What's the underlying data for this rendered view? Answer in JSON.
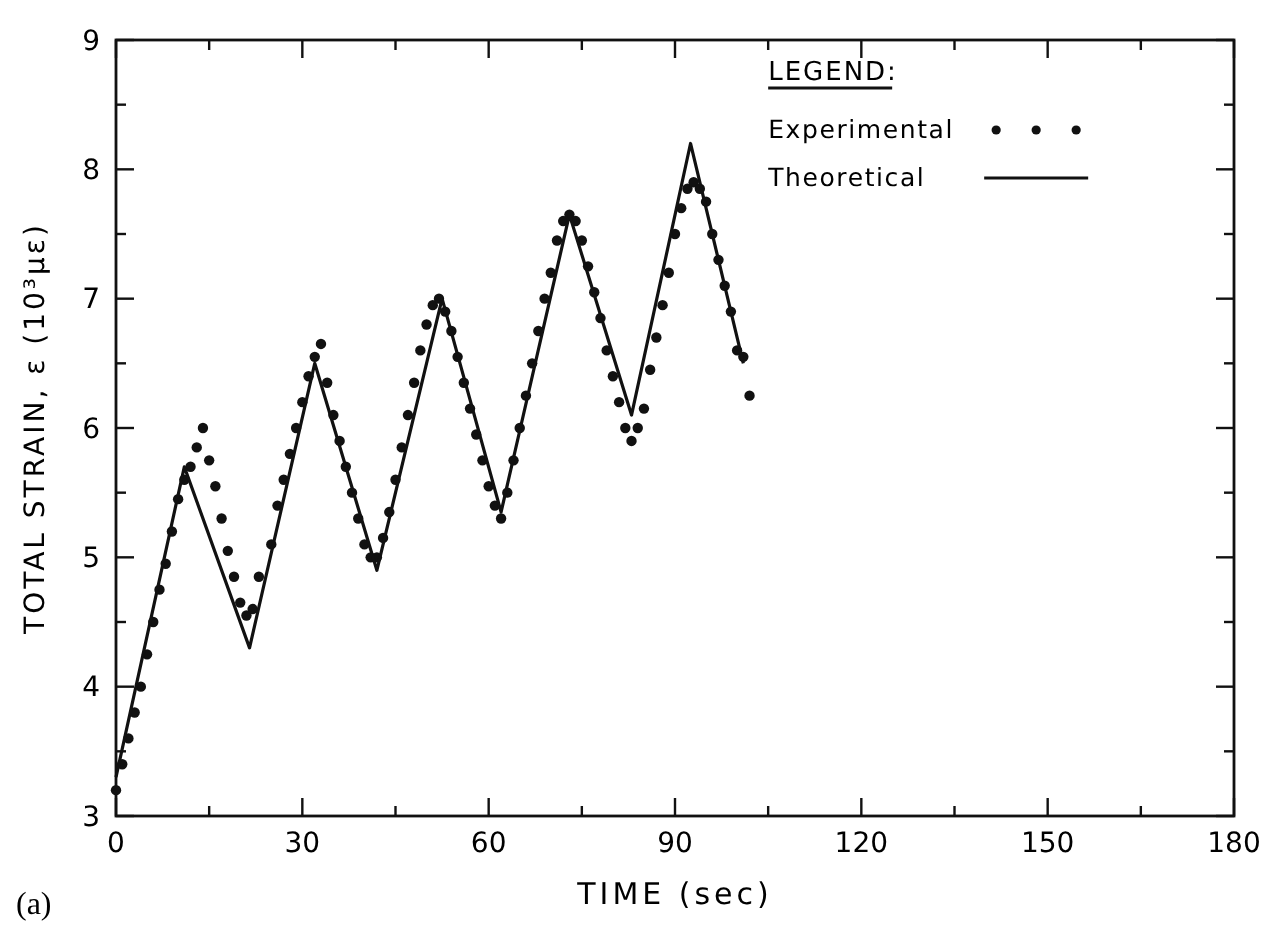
{
  "chart_data": {
    "type": "scatter",
    "xlabel": "TIME (sec)",
    "ylabel": "TOTAL STRAIN, ε (10³με)",
    "legend_title": "LEGEND:",
    "legend": "top right",
    "grid": false,
    "xlim": [
      0,
      180
    ],
    "ylim": [
      3,
      9
    ],
    "xticks": [
      0,
      {
        "value": 15,
        "label": null
      },
      30,
      {
        "value": 45,
        "label": null
      },
      60,
      {
        "value": 75,
        "label": null
      },
      90,
      {
        "value": 105,
        "label": null
      },
      120,
      {
        "value": 135,
        "label": null
      },
      150,
      {
        "value": 165,
        "label": null
      },
      180
    ],
    "yticks": [
      3,
      {
        "value": 3.5,
        "label": null
      },
      4,
      {
        "value": 4.5,
        "label": null
      },
      5,
      {
        "value": 5.5,
        "label": null
      },
      6,
      {
        "value": 6.5,
        "label": null
      },
      7,
      {
        "value": 7.5,
        "label": null
      },
      8,
      {
        "value": 8.5,
        "label": null
      },
      9
    ],
    "annotations": [
      "(a)"
    ],
    "series": [
      {
        "name": "Experimental",
        "marker": "circle",
        "color": "#111111",
        "x": [
          0,
          1,
          2,
          3,
          4,
          5,
          6,
          7,
          8,
          9,
          10,
          11,
          12,
          13,
          14,
          15,
          16,
          17,
          18,
          19,
          20,
          21,
          22,
          23,
          25,
          26,
          27,
          28,
          29,
          30,
          31,
          32,
          33,
          34,
          35,
          36,
          37,
          38,
          39,
          40,
          41,
          42,
          43,
          44,
          45,
          46,
          47,
          48,
          49,
          50,
          51,
          52,
          53,
          54,
          55,
          56,
          57,
          58,
          59,
          60,
          61,
          62,
          63,
          64,
          65,
          66,
          67,
          68,
          69,
          70,
          71,
          72,
          73,
          74,
          75,
          76,
          77,
          78,
          79,
          80,
          81,
          82,
          83,
          84,
          85,
          86,
          87,
          88,
          89,
          90,
          91,
          92,
          93,
          94,
          95,
          96,
          97,
          98,
          99,
          100,
          101,
          102
        ],
        "values": [
          3.2,
          3.4,
          3.6,
          3.8,
          4.0,
          4.25,
          4.5,
          4.75,
          4.95,
          5.2,
          5.45,
          5.6,
          5.7,
          5.85,
          6.0,
          5.75,
          5.55,
          5.3,
          5.05,
          4.85,
          4.65,
          4.55,
          4.6,
          4.85,
          5.1,
          5.4,
          5.6,
          5.8,
          6.0,
          6.2,
          6.4,
          6.55,
          6.65,
          6.35,
          6.1,
          5.9,
          5.7,
          5.5,
          5.3,
          5.1,
          5.0,
          5.0,
          5.15,
          5.35,
          5.6,
          5.85,
          6.1,
          6.35,
          6.6,
          6.8,
          6.95,
          7.0,
          6.9,
          6.75,
          6.55,
          6.35,
          6.15,
          5.95,
          5.75,
          5.55,
          5.4,
          5.3,
          5.5,
          5.75,
          6.0,
          6.25,
          6.5,
          6.75,
          7.0,
          7.2,
          7.45,
          7.6,
          7.65,
          7.6,
          7.45,
          7.25,
          7.05,
          6.85,
          6.6,
          6.4,
          6.2,
          6.0,
          5.9,
          6.0,
          6.15,
          6.45,
          6.7,
          6.95,
          7.2,
          7.5,
          7.7,
          7.85,
          7.9,
          7.85,
          7.75,
          7.5,
          7.3,
          7.1,
          6.9,
          6.6,
          6.55,
          6.25
        ]
      },
      {
        "name": "Theoretical",
        "type": "line",
        "marker": "none",
        "line_style": "solid",
        "color": "#111111",
        "x": [
          0,
          11,
          21.5,
          32,
          42,
          52.5,
          62,
          73,
          83,
          92.5,
          101
        ],
        "values": [
          3.3,
          5.7,
          4.3,
          6.5,
          4.9,
          7.0,
          5.35,
          7.65,
          6.1,
          8.2,
          6.5
        ]
      }
    ]
  }
}
